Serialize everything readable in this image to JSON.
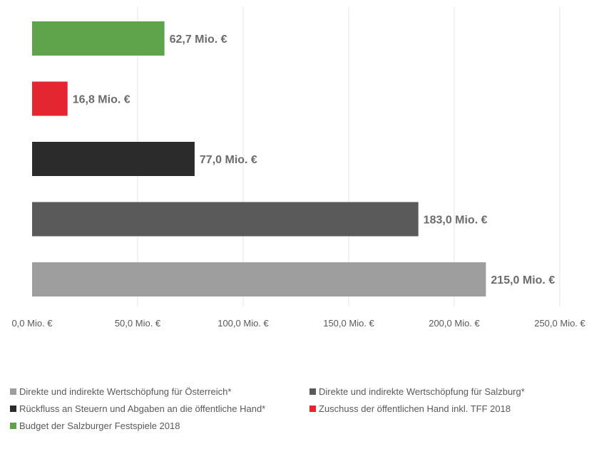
{
  "chart_data": {
    "type": "bar",
    "orientation": "horizontal",
    "title": "",
    "xlabel": "",
    "ylabel": "",
    "xlim": [
      0,
      250
    ],
    "x_ticks": [
      0,
      50,
      100,
      150,
      200,
      250
    ],
    "x_tick_labels": [
      "0,0 Mio. €",
      "50,0 Mio. €",
      "100,0 Mio. €",
      "150,0 Mio. €",
      "200,0 Mio. €",
      "250,0 Mio. €"
    ],
    "grid": "vertical",
    "legend_position": "bottom",
    "series": [
      {
        "name": "Budget der Salzburger Festspiele 2018",
        "value": 62.7,
        "label": "62,7 Mio. €",
        "color": "#5fa34b"
      },
      {
        "name": "Zuschuss der öffentlichen Hand inkl. TFF 2018",
        "value": 16.8,
        "label": "16,8 Mio. €",
        "color": "#e3262f"
      },
      {
        "name": "Rückfluss an Steuern und Abgaben an die öffentliche Hand*",
        "value": 77.0,
        "label": "77,0 Mio. €",
        "color": "#2b2b2b"
      },
      {
        "name": "Direkte und indirekte Wertschöpfung für Salzburg*",
        "value": 183.0,
        "label": "183,0 Mio. €",
        "color": "#5a5a5a"
      },
      {
        "name": "Direkte und indirekte Wertschöpfung für Österreich*",
        "value": 215.0,
        "label": "215,0 Mio. €",
        "color": "#9e9e9e"
      }
    ]
  },
  "legend": {
    "items": [
      {
        "label": "Direkte und indirekte Wertschöpfung für Österreich*",
        "color": "#9e9e9e"
      },
      {
        "label": "Direkte und indirekte Wertschöpfung für Salzburg*",
        "color": "#5a5a5a"
      },
      {
        "label": "Rückfluss an Steuern und Abgaben an die öffentliche Hand*",
        "color": "#2b2b2b"
      },
      {
        "label": "Zuschuss der öffentlichen Hand inkl. TFF 2018",
        "color": "#e3262f"
      },
      {
        "label": "Budget der Salzburger Festspiele 2018",
        "color": "#5fa34b"
      }
    ]
  }
}
